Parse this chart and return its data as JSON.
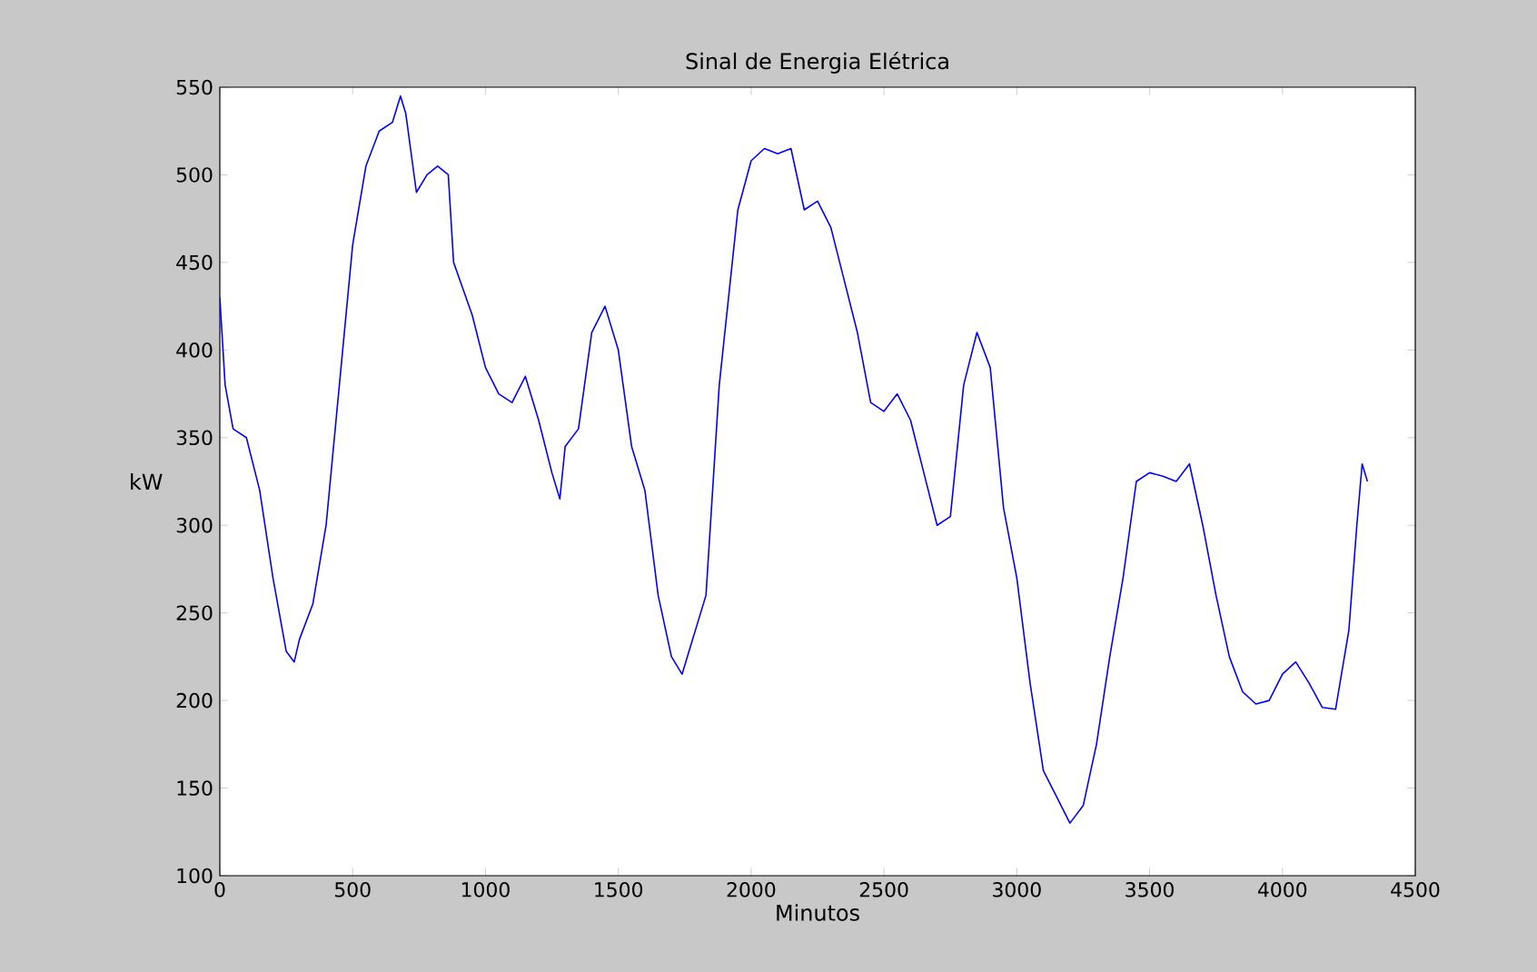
{
  "chart_data": {
    "type": "line",
    "title": "Sinal de Energia Elétrica",
    "xlabel": "Minutos",
    "ylabel": "kW",
    "xlim": [
      0,
      4500
    ],
    "ylim": [
      100,
      550
    ],
    "xticks": [
      0,
      500,
      1000,
      1500,
      2000,
      2500,
      3000,
      3500,
      4000,
      4500
    ],
    "yticks": [
      100,
      150,
      200,
      250,
      300,
      350,
      400,
      450,
      500,
      550
    ],
    "marker": "none",
    "line_style": "solid",
    "series": [
      {
        "color": "#0000ff",
        "x": [
          0,
          20,
          50,
          100,
          150,
          200,
          250,
          280,
          300,
          350,
          400,
          450,
          500,
          550,
          600,
          650,
          680,
          700,
          740,
          780,
          820,
          860,
          880,
          950,
          1000,
          1050,
          1100,
          1150,
          1200,
          1250,
          1280,
          1300,
          1350,
          1400,
          1450,
          1500,
          1550,
          1600,
          1650,
          1700,
          1740,
          1780,
          1830,
          1880,
          1950,
          2000,
          2050,
          2100,
          2150,
          2200,
          2250,
          2300,
          2350,
          2400,
          2450,
          2500,
          2550,
          2600,
          2650,
          2700,
          2750,
          2800,
          2850,
          2900,
          2950,
          3000,
          3050,
          3100,
          3150,
          3200,
          3250,
          3300,
          3350,
          3400,
          3450,
          3500,
          3550,
          3600,
          3650,
          3700,
          3750,
          3800,
          3850,
          3900,
          3950,
          4000,
          4050,
          4100,
          4150,
          4200,
          4250,
          4280,
          4300,
          4320
        ],
        "values": [
          430,
          380,
          355,
          350,
          320,
          270,
          228,
          222,
          235,
          255,
          300,
          380,
          460,
          505,
          525,
          530,
          545,
          535,
          490,
          500,
          505,
          500,
          450,
          420,
          390,
          375,
          370,
          385,
          360,
          330,
          315,
          345,
          355,
          410,
          425,
          400,
          345,
          320,
          260,
          225,
          215,
          235,
          260,
          380,
          480,
          508,
          515,
          512,
          515,
          480,
          485,
          470,
          440,
          410,
          370,
          365,
          375,
          360,
          330,
          300,
          305,
          380,
          410,
          390,
          310,
          270,
          210,
          160,
          145,
          130,
          140,
          175,
          225,
          270,
          325,
          330,
          328,
          325,
          335,
          300,
          260,
          225,
          205,
          198,
          200,
          215,
          222,
          210,
          196,
          195,
          240,
          300,
          335,
          325
        ]
      }
    ]
  }
}
